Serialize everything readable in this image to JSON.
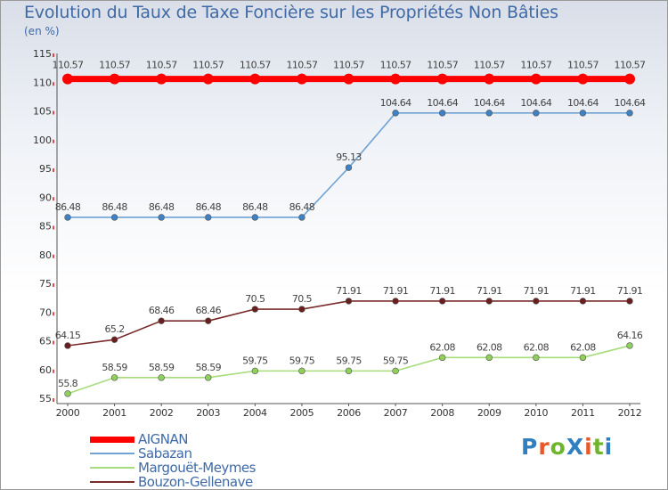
{
  "title": "Evolution du Taux de Taxe Foncière sur les Propriétés Non Bâties",
  "unit_label": "(en %)",
  "brand": {
    "text": "ProXiti",
    "letter_colors": [
      "#2f7fc1",
      "#e8582a",
      "#6fb52c",
      "#2f7fc1",
      "#e8582a",
      "#6fb52c",
      "#2f7fc1"
    ]
  },
  "chart_data": {
    "type": "line",
    "title": "Evolution du Taux de Taxe Foncière sur les Propriétés Non Bâties",
    "ylabel": "(en %)",
    "xlabel": "",
    "x": [
      "2000",
      "2001",
      "2002",
      "2003",
      "2004",
      "2005",
      "2006",
      "2007",
      "2008",
      "2009",
      "2010",
      "2011",
      "2012"
    ],
    "ylim": [
      55,
      115
    ],
    "yticks": [
      55,
      60,
      65,
      70,
      75,
      80,
      85,
      90,
      95,
      100,
      105,
      110,
      115
    ],
    "grid": false,
    "legend_position": "bottom-left",
    "series": [
      {
        "name": "AIGNAN",
        "color": "#ff0000",
        "marker_color": "#ff0000",
        "values": [
          110.57,
          110.57,
          110.57,
          110.57,
          110.57,
          110.57,
          110.57,
          110.57,
          110.57,
          110.57,
          110.57,
          110.57,
          110.57
        ],
        "labels": [
          "110.57",
          "110.57",
          "110.57",
          "110.57",
          "110.57",
          "110.57",
          "110.57",
          "110.57",
          "110.57",
          "110.57",
          "110.57",
          "110.57",
          "110.57"
        ]
      },
      {
        "name": "Sabazan",
        "color": "#6ea3d4",
        "marker_color": "#3d82c4",
        "values": [
          86.48,
          86.48,
          86.48,
          86.48,
          86.48,
          86.48,
          95.13,
          104.64,
          104.64,
          104.64,
          104.64,
          104.64,
          104.64
        ],
        "labels": [
          "86.48",
          "86.48",
          "86.48",
          "86.48",
          "86.48",
          "86.48",
          "95.13",
          "104.64",
          "104.64",
          "104.64",
          "104.64",
          "104.64",
          "104.64"
        ]
      },
      {
        "name": "Margouët-Meymes",
        "color": "#a6dc7a",
        "marker_color": "#8fd05a",
        "values": [
          55.8,
          58.59,
          58.59,
          58.59,
          59.75,
          59.75,
          59.75,
          59.75,
          62.08,
          62.08,
          62.08,
          62.08,
          64.16
        ],
        "labels": [
          "55.8",
          "58.59",
          "58.59",
          "58.59",
          "59.75",
          "59.75",
          "59.75",
          "59.75",
          "62.08",
          "62.08",
          "62.08",
          "62.08",
          "64.16"
        ]
      },
      {
        "name": "Bouzon-Gellenave",
        "color": "#7a2a2a",
        "marker_color": "#6b1e1e",
        "values": [
          64.15,
          65.2,
          68.46,
          68.46,
          70.5,
          70.5,
          71.91,
          71.91,
          71.91,
          71.91,
          71.91,
          71.91,
          71.91
        ],
        "labels": [
          "64.15",
          "65.2",
          "68.46",
          "68.46",
          "70.5",
          "70.5",
          "71.91",
          "71.91",
          "71.91",
          "71.91",
          "71.91",
          "71.91",
          "71.91"
        ]
      }
    ]
  }
}
